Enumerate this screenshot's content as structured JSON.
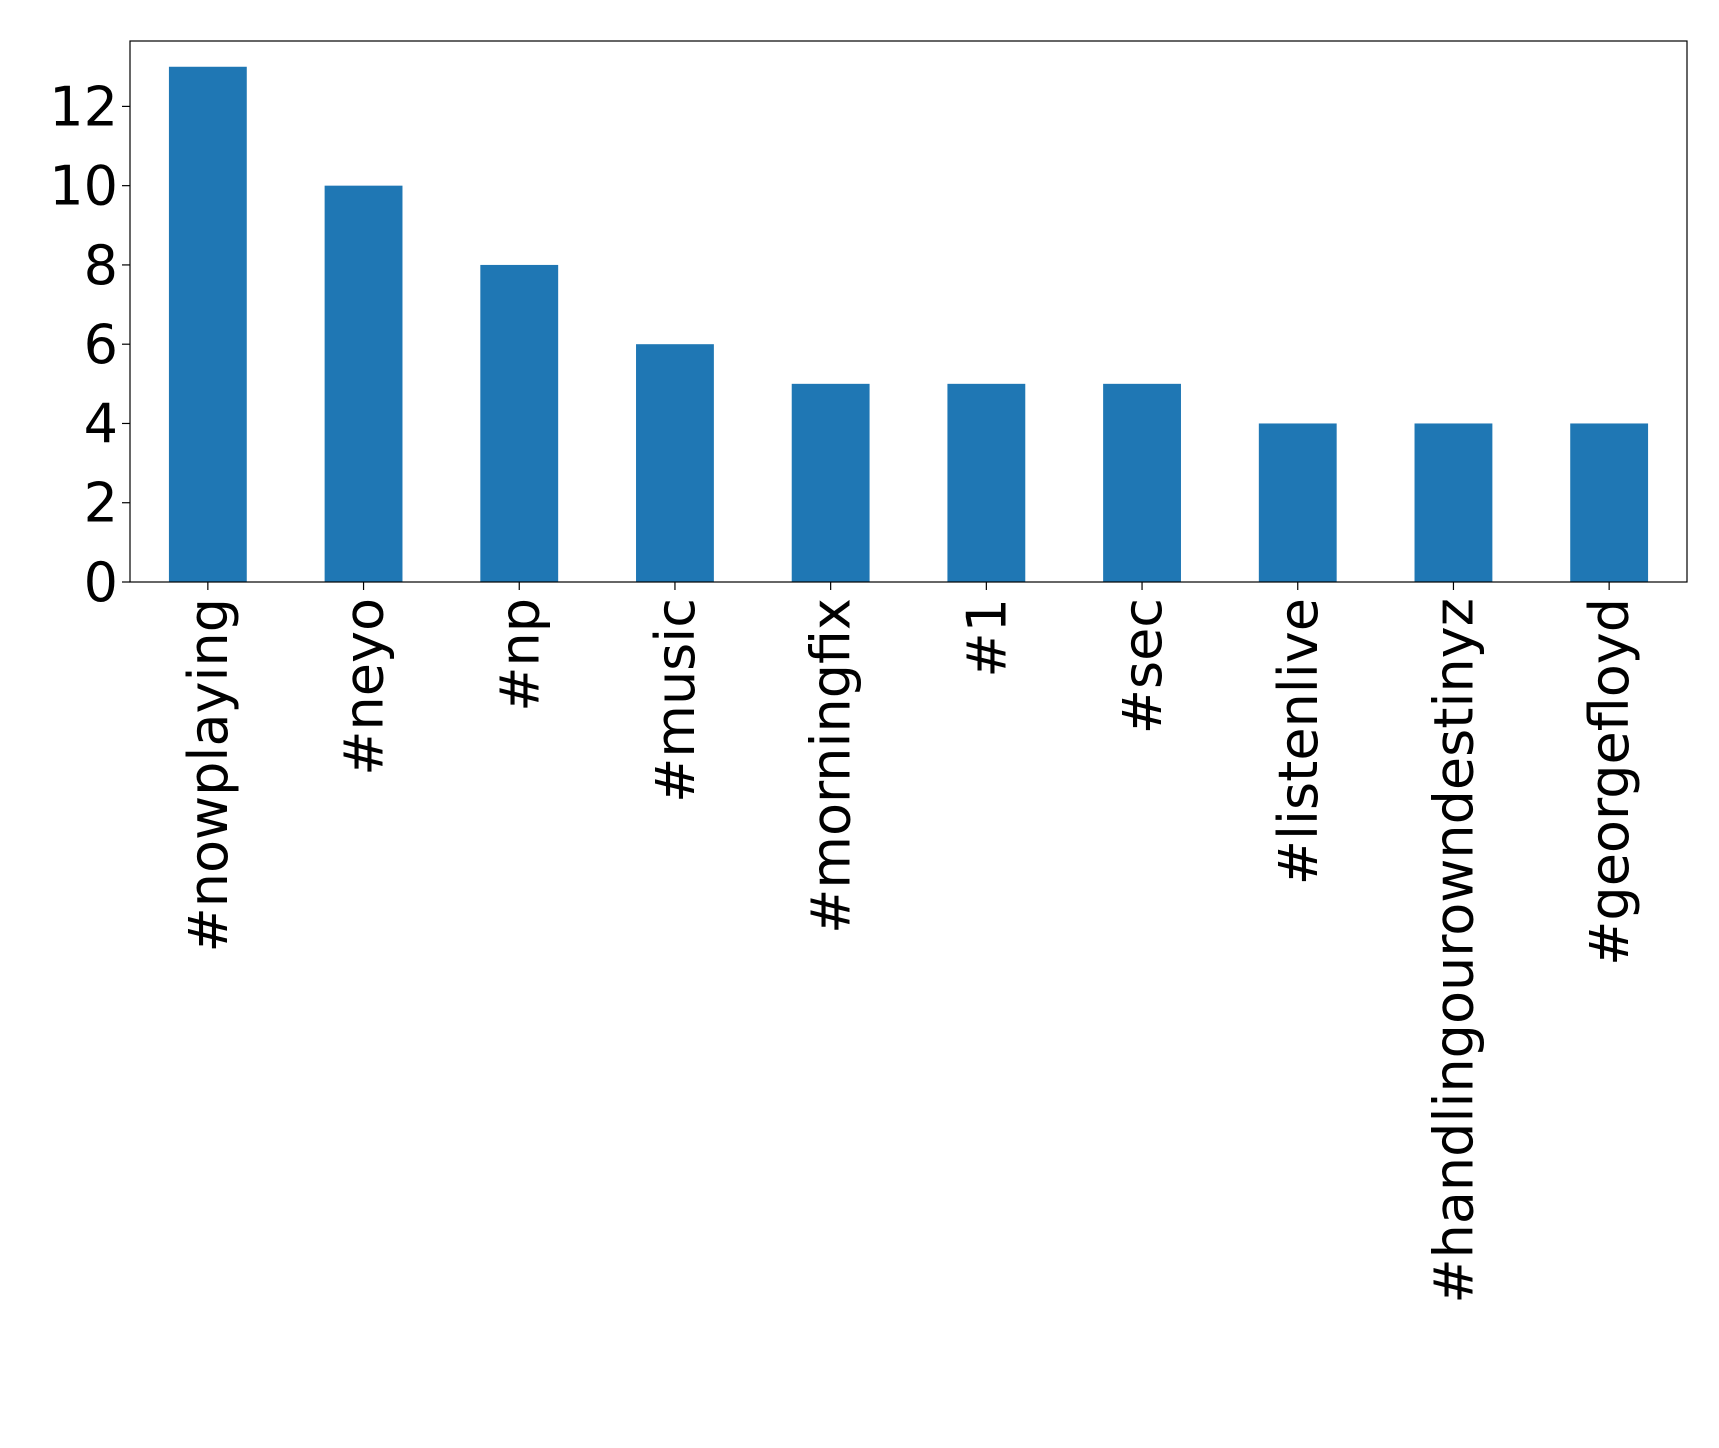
{
  "chart_data": {
    "type": "bar",
    "categories": [
      "#nowplaying",
      "#neyo",
      "#np",
      "#music",
      "#morningfix",
      "#1",
      "#sec",
      "#listenlive",
      "#handlingourowndestinyz",
      "#georgefloyd"
    ],
    "values": [
      13,
      10,
      8,
      6,
      5,
      5,
      5,
      4,
      4,
      4
    ],
    "color": "#1f77b4",
    "ylim": [
      0,
      13.65
    ],
    "yticks": [
      0,
      2,
      4,
      6,
      8,
      10,
      12
    ],
    "grid": false
  }
}
